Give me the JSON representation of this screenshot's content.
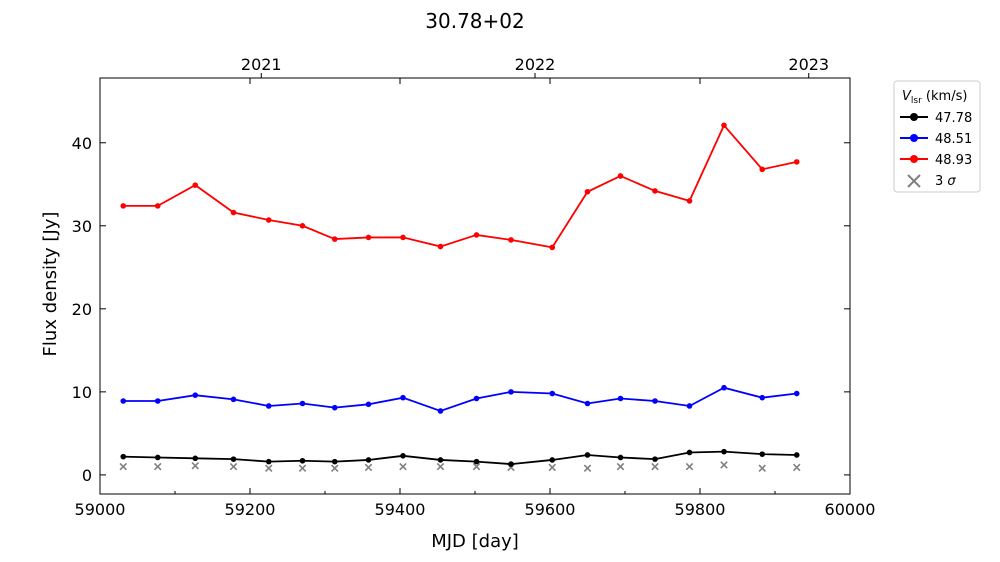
{
  "chart_data": {
    "type": "line",
    "title": "30.78+02",
    "xlabel": "MJD [day]",
    "ylabel": "Flux density [Jy]",
    "xlim": [
      59000,
      60000
    ],
    "ylim": [
      -2.3,
      47.8
    ],
    "xticks": [
      59000,
      59200,
      59400,
      59600,
      59800,
      60000
    ],
    "xtick_labels": [
      "59000",
      "59200",
      "59400",
      "59600",
      "59800",
      "60000"
    ],
    "yticks": [
      0,
      10,
      20,
      30,
      40
    ],
    "ytick_labels": [
      "0",
      "10",
      "20",
      "30",
      "40"
    ],
    "top_axis": {
      "ticks": [
        59215,
        59580,
        59945
      ],
      "labels": [
        "2021",
        "2022",
        "2023"
      ]
    },
    "legend": {
      "title": "V_lsr (km/s)",
      "title_main": "V",
      "title_sub": "lsr",
      "title_rest": " (km/s)",
      "placement": "outside upper right"
    },
    "x": [
      59031,
      59077,
      59127,
      59178,
      59225,
      59270,
      59313,
      59358,
      59404,
      59454,
      59502,
      59548,
      59603,
      59650,
      59694,
      59740,
      59786,
      59832,
      59883,
      59929
    ],
    "series": [
      {
        "name": "47.78",
        "color": "#000000",
        "values": [
          2.2,
          2.1,
          2.0,
          1.9,
          1.6,
          1.7,
          1.6,
          1.8,
          2.3,
          1.8,
          1.6,
          1.3,
          1.8,
          2.4,
          2.1,
          1.9,
          2.7,
          2.8,
          2.5,
          2.4
        ]
      },
      {
        "name": "48.51",
        "color": "#0000ff",
        "values": [
          8.9,
          8.9,
          9.6,
          9.1,
          8.3,
          8.6,
          8.1,
          8.5,
          9.3,
          7.7,
          9.2,
          10.0,
          9.8,
          8.6,
          9.2,
          8.9,
          8.3,
          10.5,
          9.3,
          9.8
        ]
      },
      {
        "name": "48.93",
        "color": "#ff0000",
        "values": [
          32.4,
          32.4,
          34.9,
          31.6,
          30.7,
          30.0,
          28.4,
          28.6,
          28.6,
          27.5,
          28.9,
          28.3,
          27.4,
          34.1,
          36.0,
          34.2,
          33.0,
          42.1,
          36.8,
          37.7
        ]
      }
    ],
    "sigma": {
      "name": "3 σ",
      "label_main": "3 ",
      "label_sym": "σ",
      "color": "#808080",
      "values": [
        1.0,
        1.0,
        1.1,
        1.0,
        0.8,
        0.8,
        0.8,
        0.9,
        1.0,
        1.0,
        1.0,
        0.9,
        0.9,
        0.8,
        1.0,
        1.0,
        1.0,
        1.2,
        0.8,
        0.9
      ]
    },
    "grid": false
  }
}
